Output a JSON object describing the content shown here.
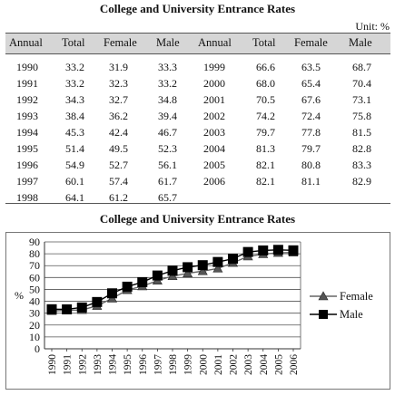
{
  "table": {
    "title": "College and University Entrance Rates",
    "unit": "Unit: %",
    "headers": [
      "Annual",
      "Total",
      "Female",
      "Male",
      "Annual",
      "Total",
      "Female",
      "Male"
    ],
    "rows_left": [
      [
        "1990",
        "33.2",
        "31.9",
        "33.3"
      ],
      [
        "1991",
        "33.2",
        "32.3",
        "33.2"
      ],
      [
        "1992",
        "34.3",
        "32.7",
        "34.8"
      ],
      [
        "1993",
        "38.4",
        "36.2",
        "39.4"
      ],
      [
        "1994",
        "45.3",
        "42.4",
        "46.7"
      ],
      [
        "1995",
        "51.4",
        "49.5",
        "52.3"
      ],
      [
        "1996",
        "54.9",
        "52.7",
        "56.1"
      ],
      [
        "1997",
        "60.1",
        "57.4",
        "61.7"
      ],
      [
        "1998",
        "64.1",
        "61.2",
        "65.7"
      ]
    ],
    "rows_right": [
      [
        "1999",
        "66.6",
        "63.5",
        "68.7"
      ],
      [
        "2000",
        "68.0",
        "65.4",
        "70.4"
      ],
      [
        "2001",
        "70.5",
        "67.6",
        "73.1"
      ],
      [
        "2002",
        "74.2",
        "72.4",
        "75.8"
      ],
      [
        "2003",
        "79.7",
        "77.8",
        "81.5"
      ],
      [
        "2004",
        "81.3",
        "79.7",
        "82.8"
      ],
      [
        "2005",
        "82.1",
        "80.8",
        "83.3"
      ],
      [
        "2006",
        "82.1",
        "81.1",
        "82.9"
      ]
    ]
  },
  "chart_data": {
    "type": "line",
    "title": "College and University Entrance Rates",
    "ylabel": "%",
    "xlabel": "",
    "x": [
      "1990",
      "1991",
      "1992",
      "1993",
      "1994",
      "1995",
      "1996",
      "1997",
      "1998",
      "1999",
      "2000",
      "2001",
      "2002",
      "2003",
      "2004",
      "2005",
      "2006"
    ],
    "ylim": [
      0,
      90
    ],
    "yticks": [
      0,
      10,
      20,
      30,
      40,
      50,
      60,
      70,
      80,
      90
    ],
    "grid": true,
    "legend": "right",
    "series": [
      {
        "name": "Female",
        "marker": "triangle",
        "color": "#000000",
        "values": [
          31.9,
          32.3,
          32.7,
          36.2,
          42.4,
          49.5,
          52.7,
          57.4,
          61.2,
          63.5,
          65.4,
          67.6,
          72.4,
          77.8,
          79.7,
          80.8,
          81.1
        ]
      },
      {
        "name": "Male",
        "marker": "square",
        "color": "#000000",
        "values": [
          33.3,
          33.2,
          34.8,
          39.4,
          46.7,
          52.3,
          56.1,
          61.7,
          65.7,
          68.7,
          70.4,
          73.1,
          75.8,
          81.5,
          82.8,
          83.3,
          82.9
        ]
      }
    ]
  }
}
